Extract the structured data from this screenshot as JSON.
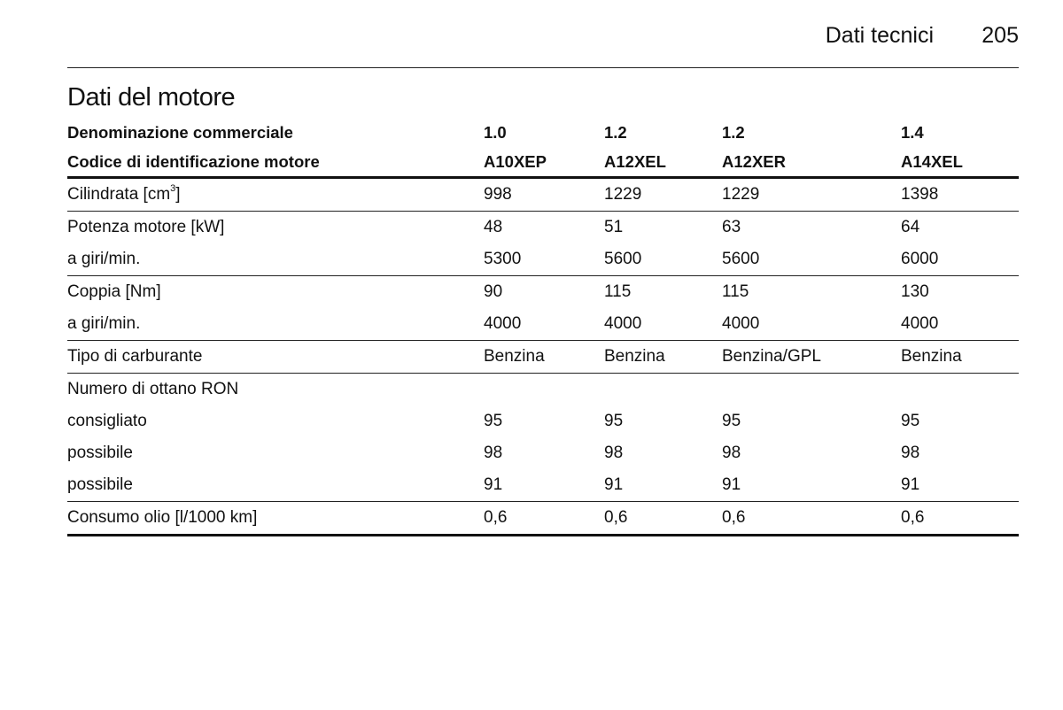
{
  "header": {
    "section": "Dati tecnici",
    "page": "205"
  },
  "title": "Dati del motore",
  "table": {
    "head": [
      {
        "label": "Denominazione commerciale",
        "values": [
          "1.0",
          "1.2",
          "1.2",
          "1.4"
        ]
      },
      {
        "label": "Codice di identificazione motore",
        "values": [
          "A10XEP",
          "A12XEL",
          "A12XER",
          "A14XEL"
        ]
      }
    ],
    "rows": [
      {
        "label": "Cilindrata [cm",
        "sup": "3",
        "label_end": "]",
        "values": [
          "998",
          "1229",
          "1229",
          "1398"
        ]
      },
      {
        "label": "Potenza motore [kW]",
        "values": [
          "48",
          "51",
          "63",
          "64"
        ]
      },
      {
        "label": "a giri/min.",
        "values": [
          "5300",
          "5600",
          "5600",
          "6000"
        ]
      },
      {
        "label": "Coppia [Nm]",
        "values": [
          "90",
          "115",
          "115",
          "130"
        ]
      },
      {
        "label": "a giri/min.",
        "values": [
          "4000",
          "4000",
          "4000",
          "4000"
        ]
      },
      {
        "label": "Tipo di carburante",
        "values": [
          "Benzina",
          "Benzina",
          "Benzina/GPL",
          "Benzina"
        ]
      },
      {
        "label": "Numero di ottano RON"
      },
      {
        "label": "consigliato",
        "values": [
          "95",
          "95",
          "95",
          "95"
        ]
      },
      {
        "label": "possibile",
        "values": [
          "98",
          "98",
          "98",
          "98"
        ]
      },
      {
        "label": "possibile",
        "values": [
          "91",
          "91",
          "91",
          "91"
        ]
      },
      {
        "label": "Consumo olio [l/1000 km]",
        "values": [
          "0,6",
          "0,6",
          "0,6",
          "0,6"
        ]
      }
    ]
  }
}
